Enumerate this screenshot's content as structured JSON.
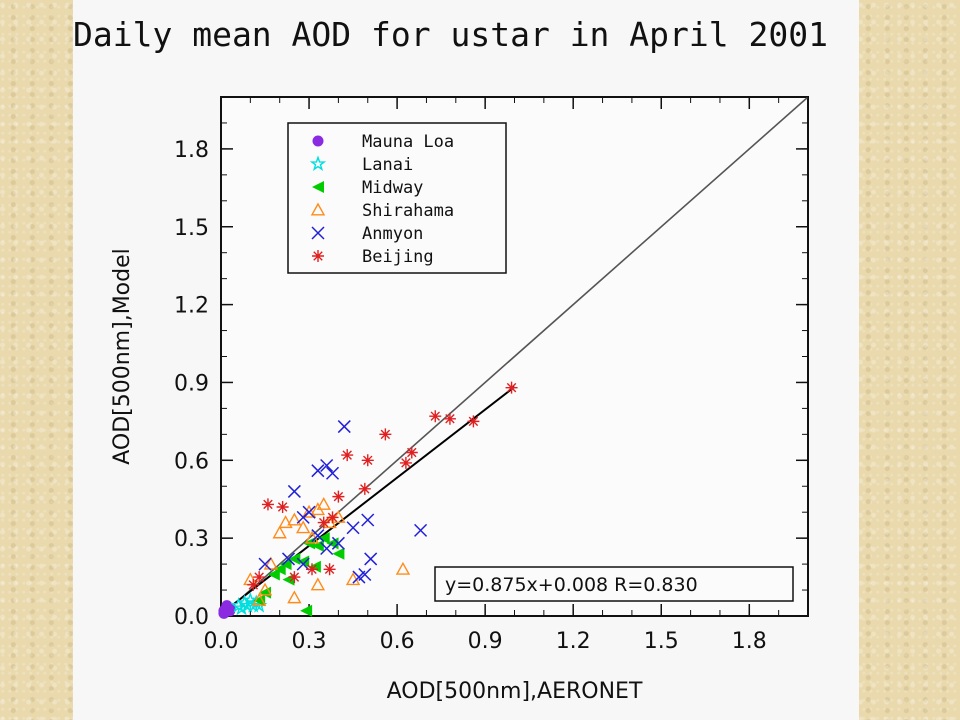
{
  "chart_data": {
    "type": "scatter",
    "title": "Daily mean AOD for ustar in April 2001",
    "xlabel": "AOD[500nm],AERONET",
    "ylabel": "AOD[500nm],Model",
    "xlim": [
      0,
      2.0
    ],
    "ylim": [
      0,
      2.0
    ],
    "xticks": [
      "0.0",
      "0.3",
      "0.6",
      "0.9",
      "1.2",
      "1.5",
      "1.8"
    ],
    "yticks": [
      "0.0",
      "0.3",
      "0.6",
      "0.9",
      "1.2",
      "1.5",
      "1.8"
    ],
    "legend_position": "top-left",
    "one_to_one_line": true,
    "fit_line": {
      "slope": 0.875,
      "intercept": 0.008,
      "x_range": [
        0.0,
        1.0
      ]
    },
    "annotation": "y=0.875x+0.008 R=0.830",
    "series": [
      {
        "name": "Mauna Loa",
        "marker": "circle",
        "color": "#8a2be2",
        "points": [
          [
            0.01,
            0.02
          ],
          [
            0.02,
            0.03
          ],
          [
            0.03,
            0.03
          ],
          [
            0.02,
            0.04
          ],
          [
            0.01,
            0.01
          ],
          [
            0.03,
            0.02
          ]
        ]
      },
      {
        "name": "Lanai",
        "marker": "star",
        "color": "#00dede",
        "points": [
          [
            0.06,
            0.04
          ],
          [
            0.08,
            0.05
          ],
          [
            0.09,
            0.04
          ],
          [
            0.1,
            0.06
          ],
          [
            0.11,
            0.04
          ],
          [
            0.12,
            0.05
          ],
          [
            0.07,
            0.03
          ],
          [
            0.13,
            0.04
          ]
        ]
      },
      {
        "name": "Midway",
        "marker": "triangle-left",
        "color": "#00cc00",
        "points": [
          [
            0.13,
            0.06
          ],
          [
            0.18,
            0.16
          ],
          [
            0.2,
            0.18
          ],
          [
            0.22,
            0.2
          ],
          [
            0.25,
            0.22
          ],
          [
            0.28,
            0.21
          ],
          [
            0.3,
            0.28
          ],
          [
            0.33,
            0.27
          ],
          [
            0.35,
            0.3
          ],
          [
            0.38,
            0.28
          ],
          [
            0.4,
            0.24
          ],
          [
            0.29,
            0.02
          ],
          [
            0.23,
            0.14
          ],
          [
            0.15,
            0.09
          ],
          [
            0.32,
            0.19
          ]
        ]
      },
      {
        "name": "Shirahama",
        "marker": "triangle",
        "color": "#ff8c1a",
        "points": [
          [
            0.13,
            0.06
          ],
          [
            0.15,
            0.1
          ],
          [
            0.17,
            0.2
          ],
          [
            0.2,
            0.32
          ],
          [
            0.22,
            0.36
          ],
          [
            0.25,
            0.37
          ],
          [
            0.28,
            0.34
          ],
          [
            0.3,
            0.4
          ],
          [
            0.33,
            0.41
          ],
          [
            0.35,
            0.43
          ],
          [
            0.37,
            0.36
          ],
          [
            0.4,
            0.38
          ],
          [
            0.33,
            0.12
          ],
          [
            0.45,
            0.14
          ],
          [
            0.62,
            0.18
          ],
          [
            0.25,
            0.07
          ],
          [
            0.1,
            0.14
          ],
          [
            0.31,
            0.3
          ]
        ]
      },
      {
        "name": "Anmyon",
        "marker": "x",
        "color": "#2020d8",
        "points": [
          [
            0.15,
            0.2
          ],
          [
            0.23,
            0.22
          ],
          [
            0.25,
            0.48
          ],
          [
            0.28,
            0.38
          ],
          [
            0.3,
            0.4
          ],
          [
            0.33,
            0.56
          ],
          [
            0.36,
            0.58
          ],
          [
            0.38,
            0.55
          ],
          [
            0.42,
            0.73
          ],
          [
            0.45,
            0.34
          ],
          [
            0.5,
            0.37
          ],
          [
            0.49,
            0.16
          ],
          [
            0.51,
            0.22
          ],
          [
            0.68,
            0.33
          ],
          [
            0.28,
            0.2
          ],
          [
            0.36,
            0.26
          ],
          [
            0.4,
            0.28
          ],
          [
            0.33,
            0.31
          ],
          [
            0.47,
            0.15
          ]
        ]
      },
      {
        "name": "Beijing",
        "marker": "asterisk",
        "color": "#e02020",
        "points": [
          [
            0.16,
            0.43
          ],
          [
            0.21,
            0.42
          ],
          [
            0.25,
            0.15
          ],
          [
            0.31,
            0.18
          ],
          [
            0.37,
            0.18
          ],
          [
            0.4,
            0.46
          ],
          [
            0.43,
            0.62
          ],
          [
            0.5,
            0.6
          ],
          [
            0.56,
            0.7
          ],
          [
            0.63,
            0.59
          ],
          [
            0.65,
            0.63
          ],
          [
            0.73,
            0.77
          ],
          [
            0.78,
            0.76
          ],
          [
            0.86,
            0.75
          ],
          [
            0.99,
            0.88
          ],
          [
            0.49,
            0.49
          ],
          [
            0.38,
            0.38
          ],
          [
            0.11,
            0.12
          ],
          [
            0.13,
            0.15
          ],
          [
            0.35,
            0.36
          ]
        ]
      }
    ]
  }
}
